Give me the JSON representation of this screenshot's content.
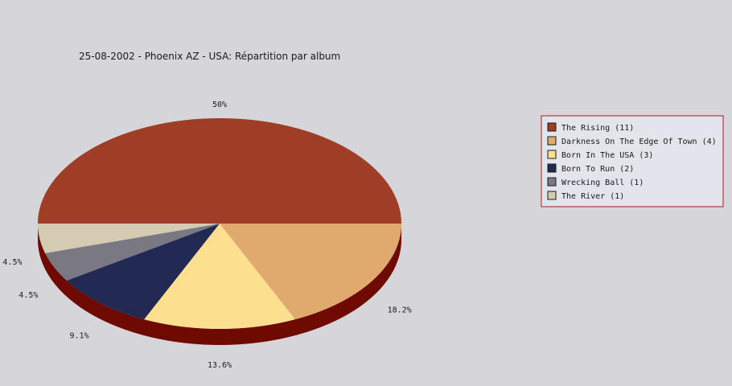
{
  "chart_data": {
    "type": "pie",
    "title": "25-08-2002 - Phoenix AZ - USA:  Répartition par album",
    "legend_position": "right",
    "slices": [
      {
        "label": "The Rising",
        "count": 11,
        "percent_label": "50%",
        "color": "#a03d26",
        "legend": "The Rising (11)"
      },
      {
        "label": "Darkness On The Edge Of Town",
        "count": 4,
        "percent_label": "18.2%",
        "color": "#e0aa6e",
        "legend": "Darkness On The Edge Of Town (4)"
      },
      {
        "label": "Born In The USA",
        "count": 3,
        "percent_label": "13.6%",
        "color": "#fde08f",
        "legend": "Born In The USA (3)"
      },
      {
        "label": "Born To Run",
        "count": 2,
        "percent_label": "9.1%",
        "color": "#222a54",
        "legend": "Born To Run (2)"
      },
      {
        "label": "Wrecking Ball",
        "count": 1,
        "percent_label": "4.5%",
        "color": "#7a7883",
        "legend": "Wrecking Ball (1)"
      },
      {
        "label": "The River",
        "count": 1,
        "percent_label": "4.5%",
        "color": "#d5cab2",
        "legend": "The River (1)"
      }
    ]
  }
}
